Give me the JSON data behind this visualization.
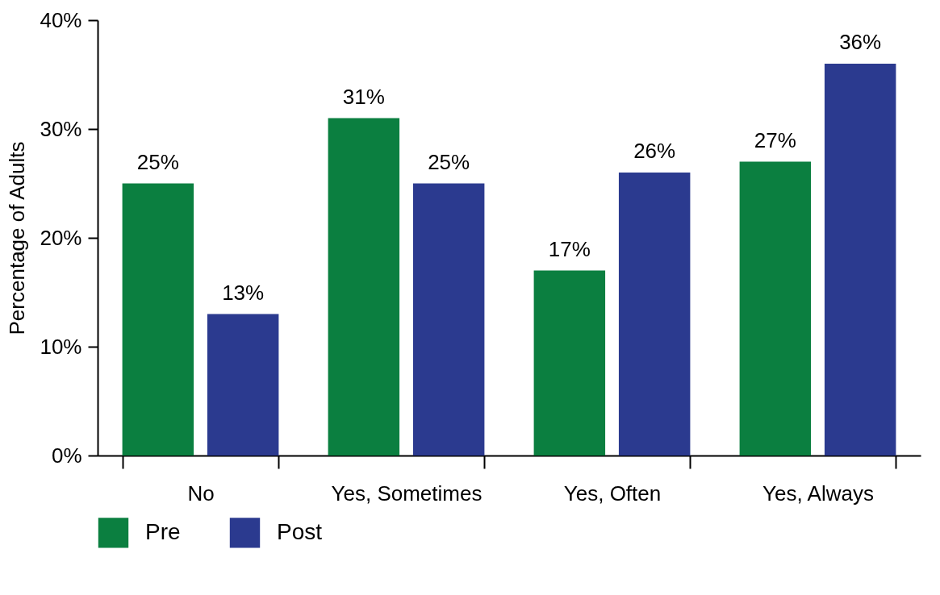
{
  "chart_data": {
    "type": "bar",
    "ylabel": "Percentage of Adults",
    "categories": [
      "No",
      "Yes, Sometimes",
      "Yes, Often",
      "Yes, Always"
    ],
    "series": [
      {
        "name": "Pre",
        "color": "#0b7f40",
        "values": [
          25,
          31,
          17,
          27
        ],
        "value_labels": [
          "25%",
          "31%",
          "17%",
          "27%"
        ]
      },
      {
        "name": "Post",
        "color": "#2b3a8f",
        "values": [
          13,
          25,
          26,
          36
        ],
        "value_labels": [
          "13%",
          "25%",
          "26%",
          "36%"
        ]
      }
    ],
    "ylim": [
      0,
      40
    ],
    "yticks": [
      {
        "value": 0,
        "label": "0%"
      },
      {
        "value": 10,
        "label": "10%"
      },
      {
        "value": 20,
        "label": "20%"
      },
      {
        "value": 30,
        "label": "30%"
      },
      {
        "value": 40,
        "label": "40%"
      }
    ],
    "grid": false,
    "legend": "bottom"
  }
}
